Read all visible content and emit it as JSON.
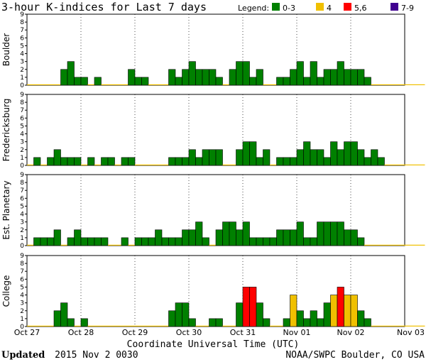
{
  "chart_data": {
    "type": "bar",
    "title": "3-hour K-indices for Last 7 days",
    "xlabel": "Coordinate Universal Time (UTC)",
    "ylim": [
      0,
      9
    ],
    "yticks": [
      "0",
      "1",
      "2",
      "3",
      "4",
      "5",
      "6",
      "7",
      "8",
      "9"
    ],
    "x_ticks": [
      "Oct 27",
      "Oct 28",
      "Oct 29",
      "Oct 30",
      "Oct 31",
      "Nov 01",
      "Nov 02",
      "Nov 03"
    ],
    "grid": true,
    "legend_title": "Legend:",
    "legend_position": "top-right",
    "legend": [
      {
        "label": "0-3",
        "color": "#008000"
      },
      {
        "label": "4",
        "color": "#f0c000"
      },
      {
        "label": "5,6",
        "color": "#ff0000"
      },
      {
        "label": "7-9",
        "color": "#400090"
      }
    ],
    "panels": [
      {
        "name": "Boulder",
        "values": [
          0,
          0,
          0,
          0,
          0,
          2,
          3,
          1,
          1,
          0,
          1,
          0,
          0,
          0,
          0,
          2,
          1,
          1,
          0,
          0,
          0,
          2,
          1,
          2,
          3,
          2,
          2,
          2,
          1,
          0,
          2,
          3,
          3,
          1,
          2,
          0,
          0,
          1,
          1,
          2,
          3,
          1,
          3,
          1,
          2,
          2,
          3,
          2,
          2,
          2,
          1,
          0,
          0,
          0,
          0,
          0,
          0,
          0,
          0
        ]
      },
      {
        "name": "Fredericksburg",
        "values": [
          0,
          1,
          0,
          1,
          2,
          1,
          1,
          1,
          0,
          1,
          0,
          1,
          1,
          0,
          1,
          1,
          0,
          0,
          0,
          0,
          0,
          1,
          1,
          1,
          2,
          1,
          2,
          2,
          2,
          0,
          0,
          2,
          3,
          3,
          1,
          2,
          0,
          1,
          1,
          1,
          2,
          3,
          2,
          2,
          1,
          3,
          2,
          3,
          3,
          2,
          1,
          2,
          1,
          0,
          0,
          0,
          0,
          0,
          0
        ]
      },
      {
        "name": "Est. Planetary",
        "values": [
          0,
          1,
          1,
          1,
          2,
          0,
          1,
          2,
          1,
          1,
          1,
          1,
          0,
          0,
          1,
          0,
          1,
          1,
          1,
          2,
          1,
          1,
          1,
          2,
          2,
          3,
          1,
          0,
          2,
          3,
          3,
          2,
          3,
          1,
          1,
          1,
          1,
          2,
          2,
          2,
          3,
          1,
          1,
          3,
          3,
          3,
          3,
          2,
          2,
          1,
          0,
          0,
          0,
          0,
          0,
          0,
          0,
          0,
          0
        ]
      },
      {
        "name": "College",
        "values": [
          0,
          0,
          0,
          0,
          2,
          3,
          1,
          0,
          1,
          0,
          0,
          0,
          0,
          0,
          0,
          0,
          0,
          0,
          0,
          0,
          0,
          2,
          3,
          3,
          1,
          0,
          0,
          1,
          1,
          0,
          0,
          3,
          5,
          5,
          3,
          1,
          0,
          0,
          1,
          4,
          2,
          1,
          2,
          1,
          3,
          4,
          5,
          4,
          4,
          2,
          1,
          0,
          0,
          0,
          0,
          0,
          0,
          0,
          0
        ]
      }
    ]
  },
  "footer": {
    "updated_label": "Updated",
    "updated_value": "2015 Nov  2 0030",
    "credit": "NOAA/SWPC Boulder, CO USA"
  }
}
